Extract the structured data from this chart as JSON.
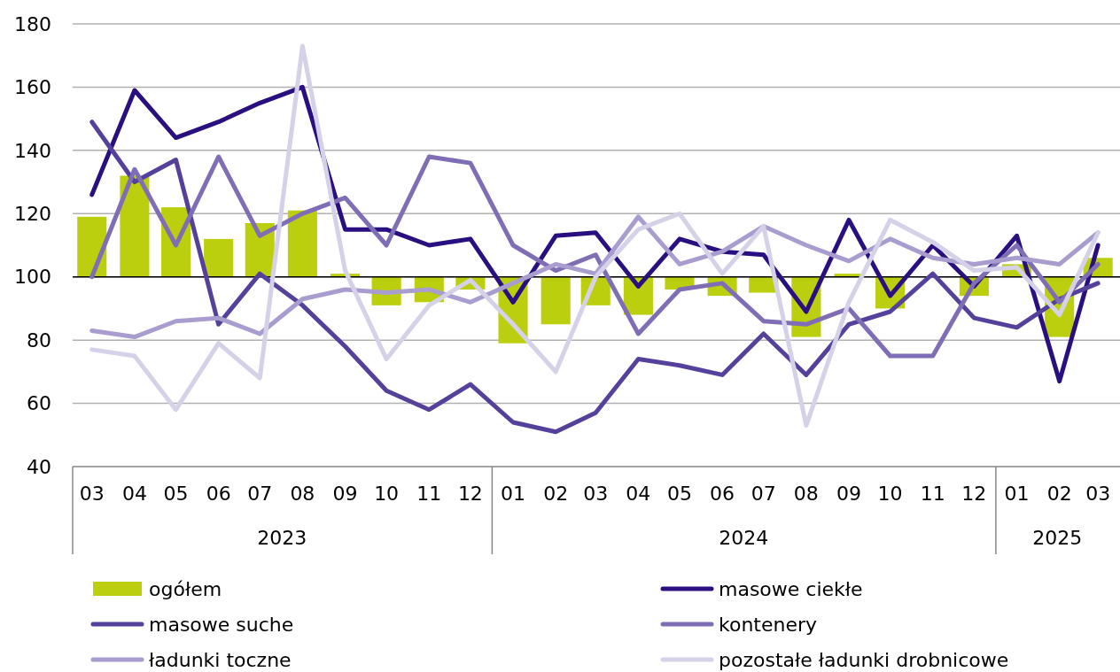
{
  "chart_data": {
    "type": "bar",
    "x": [
      "2023-03",
      "2023-04",
      "2023-05",
      "2023-06",
      "2023-07",
      "2023-08",
      "2023-09",
      "2023-10",
      "2023-11",
      "2023-12",
      "2024-01",
      "2024-02",
      "2024-03",
      "2024-04",
      "2024-05",
      "2024-06",
      "2024-07",
      "2024-08",
      "2024-09",
      "2024-10",
      "2024-11",
      "2024-12",
      "2025-01",
      "2025-02",
      "2025-03"
    ],
    "xticks": [
      {
        "value": "2023-03",
        "label": "03"
      },
      {
        "value": "2023-04",
        "label": "04"
      },
      {
        "value": "2023-05",
        "label": "05"
      },
      {
        "value": "2023-06",
        "label": "06"
      },
      {
        "value": "2023-07",
        "label": "07"
      },
      {
        "value": "2023-08",
        "label": "08"
      },
      {
        "value": "2023-09",
        "label": "09"
      },
      {
        "value": "2023-10",
        "label": "10"
      },
      {
        "value": "2023-11",
        "label": "11"
      },
      {
        "value": "2023-12",
        "label": "12"
      },
      {
        "value": "2024-01",
        "label": "01"
      },
      {
        "value": "2024-02",
        "label": "02"
      },
      {
        "value": "2024-03",
        "label": "03"
      },
      {
        "value": "2024-04",
        "label": "04"
      },
      {
        "value": "2024-05",
        "label": "05"
      },
      {
        "value": "2024-06",
        "label": "06"
      },
      {
        "value": "2024-07",
        "label": "07"
      },
      {
        "value": "2024-08",
        "label": "08"
      },
      {
        "value": "2024-09",
        "label": "09"
      },
      {
        "value": "2024-10",
        "label": "10"
      },
      {
        "value": "2024-11",
        "label": "11"
      },
      {
        "value": "2024-12",
        "label": "12"
      },
      {
        "value": "2025-01",
        "label": "01"
      },
      {
        "value": "2025-02",
        "label": "02"
      },
      {
        "value": "2025-03",
        "label": "03"
      }
    ],
    "xlim": [
      "2023-02-15",
      "2025-03-17"
    ],
    "annotations": [
      "2023",
      "2024",
      "2025"
    ],
    "ylim": [
      40,
      180
    ],
    "yticks": [
      40,
      60,
      80,
      100,
      120,
      140,
      160,
      180
    ],
    "grid": "y",
    "legend": "bottom",
    "ref_lines": [
      {
        "axis": "y",
        "value": 100,
        "color": "#000000"
      }
    ],
    "series": [
      {
        "name": "ogółem",
        "color": "#bccf0f",
        "base": [
          100,
          100,
          100,
          100,
          100,
          100,
          100,
          100,
          100,
          100,
          100,
          100,
          100,
          100,
          100,
          100,
          100,
          100,
          100,
          100,
          null,
          100,
          100,
          100,
          100
        ],
        "values": [
          19,
          32,
          22,
          12,
          17,
          21,
          1,
          -9,
          -8,
          -4,
          -21,
          -15,
          -9,
          -12,
          -4,
          -6,
          -5,
          -19,
          1,
          -10,
          null,
          -6,
          4,
          -19,
          6
        ]
      },
      {
        "name": "masowe ciekłe",
        "type": "line",
        "color": "#2a0f80",
        "values": [
          126,
          159,
          144,
          149,
          155,
          160,
          115,
          115,
          110,
          112,
          92,
          113,
          114,
          97,
          112,
          108,
          107,
          89,
          118,
          94,
          110,
          97,
          113,
          67,
          110
        ]
      },
      {
        "name": "masowe suche",
        "type": "line",
        "color": "#55409c",
        "values": [
          149,
          130,
          137,
          85,
          101,
          91,
          78,
          64,
          58,
          66,
          54,
          51,
          57,
          74,
          72,
          69,
          82,
          69,
          85,
          89,
          101,
          87,
          84,
          93,
          98
        ]
      },
      {
        "name": "kontenery",
        "type": "line",
        "color": "#7f6db5",
        "values": [
          100,
          134,
          110,
          138,
          113,
          120,
          125,
          110,
          138,
          136,
          110,
          102,
          107,
          82,
          96,
          98,
          86,
          85,
          90,
          75,
          75,
          98,
          110,
          92,
          104
        ]
      },
      {
        "name": "ładunki toczne",
        "type": "line",
        "color": "#a99ccf",
        "values": [
          83,
          81,
          86,
          87,
          82,
          93,
          96,
          95,
          96,
          92,
          98,
          104,
          101,
          119,
          104,
          108,
          116,
          110,
          105,
          112,
          106,
          104,
          106,
          104,
          114
        ]
      },
      {
        "name": "pozostałe ładunki drobnicowe",
        "type": "line",
        "color": "#d5d1e8",
        "values": [
          77,
          75,
          58,
          79,
          68,
          173,
          102,
          74,
          91,
          99,
          85,
          70,
          100,
          115,
          120,
          101,
          116,
          53,
          92,
          118,
          111,
          102,
          103,
          88,
          114
        ]
      }
    ]
  }
}
